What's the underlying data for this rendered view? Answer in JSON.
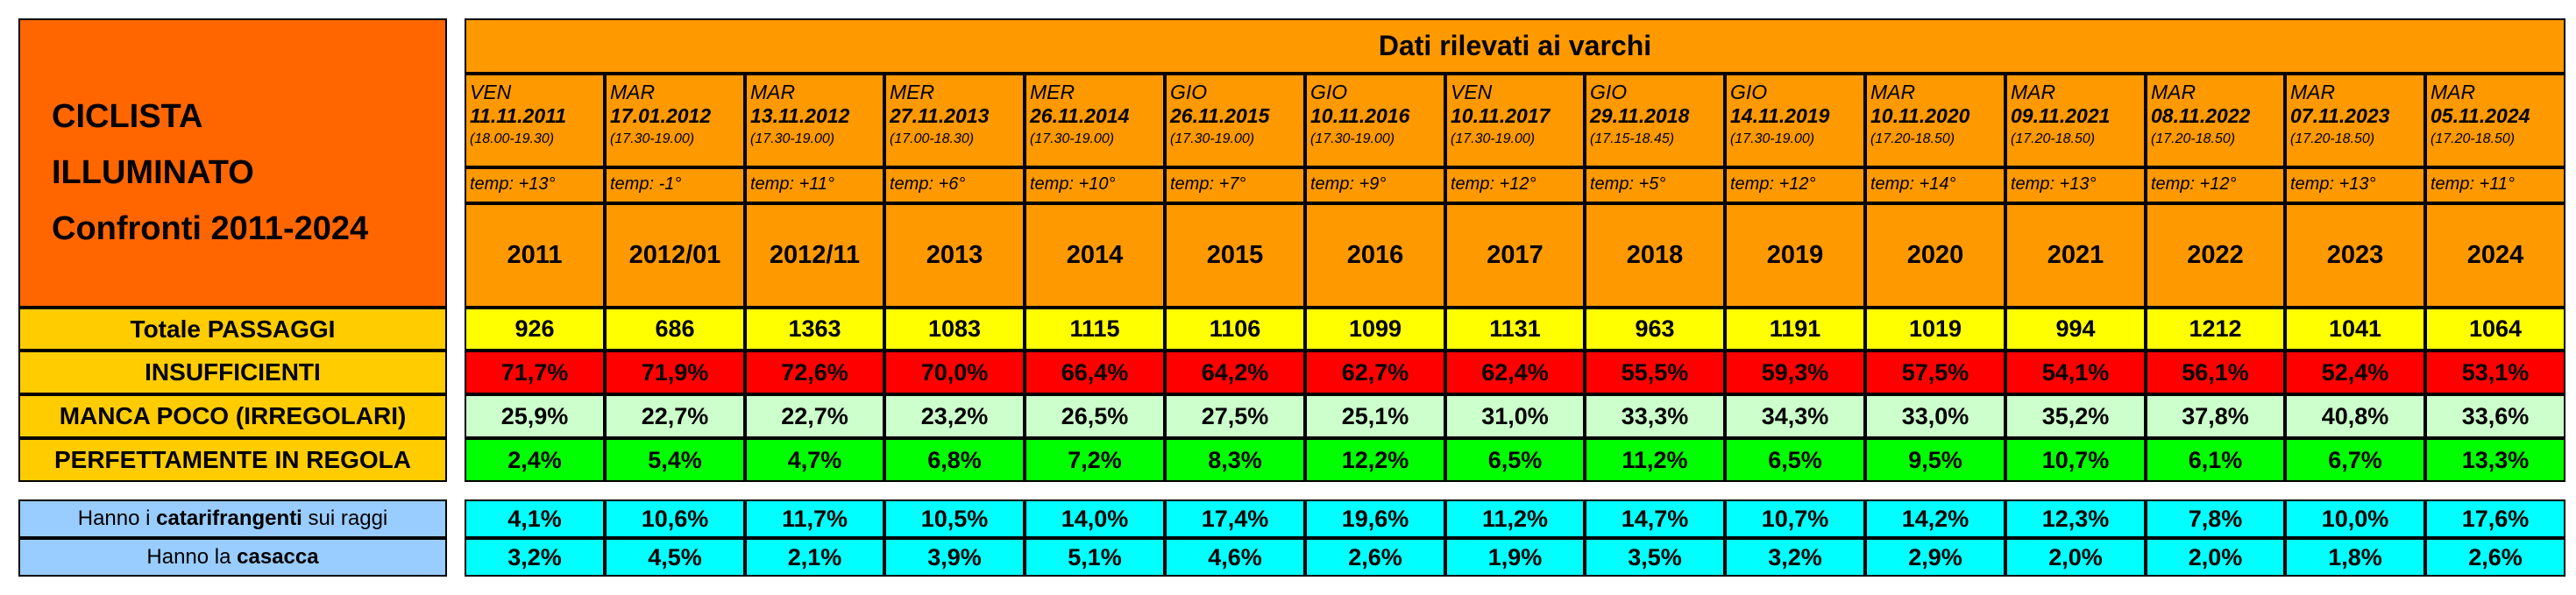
{
  "title": {
    "line1": "CICLISTA",
    "line2": "ILLUMINATO",
    "line3": "Confronti 2011-2024"
  },
  "header": {
    "banner": "Dati rilevati ai varchi"
  },
  "row_labels": {
    "totale": "Totale PASSAGGI",
    "insufficienti": "INSUFFICIENTI",
    "manca_poco": "MANCA POCO (IRREGOLARI)",
    "regola": "PERFETTAMENTE IN REGOLA",
    "cat_pre": "Hanno i ",
    "cat_bold": "catarifrangenti",
    "cat_post": " sui raggi",
    "cas_pre": "Hanno la ",
    "cas_bold": "casacca"
  },
  "colors": {
    "orange_title": "#ff6600",
    "orange_header": "#ff9900",
    "label_gold": "#ffcc00",
    "yellow": "#ffff00",
    "red": "#ff0000",
    "light_green": "#ccffcc",
    "green": "#00ff00",
    "light_blue": "#99ccff",
    "cyan": "#00ffff"
  },
  "columns": [
    {
      "dow": "VEN",
      "date": "11.11.2011",
      "time": "(18.00-19.30)",
      "temp": "temp: +13°",
      "year": "2011",
      "totale": "926",
      "insufficienti": "71,7%",
      "manca_poco": "25,9%",
      "regola": "2,4%",
      "catarifrangenti": "4,1%",
      "casacca": "3,2%"
    },
    {
      "dow": "MAR",
      "date": "17.01.2012",
      "time": "(17.30-19.00)",
      "temp": "temp: -1°",
      "year": "2012/01",
      "totale": "686",
      "insufficienti": "71,9%",
      "manca_poco": "22,7%",
      "regola": "5,4%",
      "catarifrangenti": "10,6%",
      "casacca": "4,5%"
    },
    {
      "dow": "MAR",
      "date": "13.11.2012",
      "time": "(17.30-19.00)",
      "temp": "temp: +11°",
      "year": "2012/11",
      "totale": "1363",
      "insufficienti": "72,6%",
      "manca_poco": "22,7%",
      "regola": "4,7%",
      "catarifrangenti": "11,7%",
      "casacca": "2,1%"
    },
    {
      "dow": "MER",
      "date": "27.11.2013",
      "time": "(17.00-18.30)",
      "temp": "temp: +6°",
      "year": "2013",
      "totale": "1083",
      "insufficienti": "70,0%",
      "manca_poco": "23,2%",
      "regola": "6,8%",
      "catarifrangenti": "10,5%",
      "casacca": "3,9%"
    },
    {
      "dow": "MER",
      "date": "26.11.2014",
      "time": "(17.30-19.00)",
      "temp": "temp: +10°",
      "year": "2014",
      "totale": "1115",
      "insufficienti": "66,4%",
      "manca_poco": "26,5%",
      "regola": "7,2%",
      "catarifrangenti": "14,0%",
      "casacca": "5,1%"
    },
    {
      "dow": "GIO",
      "date": "26.11.2015",
      "time": "(17.30-19.00)",
      "temp": "temp: +7°",
      "year": "2015",
      "totale": "1106",
      "insufficienti": "64,2%",
      "manca_poco": "27,5%",
      "regola": "8,3%",
      "catarifrangenti": "17,4%",
      "casacca": "4,6%"
    },
    {
      "dow": "GIO",
      "date": "10.11.2016",
      "time": "(17.30-19.00)",
      "temp": "temp: +9°",
      "year": "2016",
      "totale": "1099",
      "insufficienti": "62,7%",
      "manca_poco": "25,1%",
      "regola": "12,2%",
      "catarifrangenti": "19,6%",
      "casacca": "2,6%"
    },
    {
      "dow": "VEN",
      "date": "10.11.2017",
      "time": "(17.30-19.00)",
      "temp": "temp: +12°",
      "year": "2017",
      "totale": "1131",
      "insufficienti": "62,4%",
      "manca_poco": "31,0%",
      "regola": "6,5%",
      "catarifrangenti": "11,2%",
      "casacca": "1,9%"
    },
    {
      "dow": "GIO",
      "date": "29.11.2018",
      "time": "(17.15-18.45)",
      "temp": "temp: +5°",
      "year": "2018",
      "totale": "963",
      "insufficienti": "55,5%",
      "manca_poco": "33,3%",
      "regola": "11,2%",
      "catarifrangenti": "14,7%",
      "casacca": "3,5%"
    },
    {
      "dow": "GIO",
      "date": "14.11.2019",
      "time": "(17.30-19.00)",
      "temp": "temp: +12°",
      "year": "2019",
      "totale": "1191",
      "insufficienti": "59,3%",
      "manca_poco": "34,3%",
      "regola": "6,5%",
      "catarifrangenti": "10,7%",
      "casacca": "3,2%"
    },
    {
      "dow": "MAR",
      "date": "10.11.2020",
      "time": "(17.20-18.50)",
      "temp": "temp: +14°",
      "year": "2020",
      "totale": "1019",
      "insufficienti": "57,5%",
      "manca_poco": "33,0%",
      "regola": "9,5%",
      "catarifrangenti": "14,2%",
      "casacca": "2,9%"
    },
    {
      "dow": "MAR",
      "date": "09.11.2021",
      "time": "(17.20-18.50)",
      "temp": "temp: +13°",
      "year": "2021",
      "totale": "994",
      "insufficienti": "54,1%",
      "manca_poco": "35,2%",
      "regola": "10,7%",
      "catarifrangenti": "12,3%",
      "casacca": "2,0%"
    },
    {
      "dow": "MAR",
      "date": "08.11.2022",
      "time": "(17.20-18.50)",
      "temp": "temp: +12°",
      "year": "2022",
      "totale": "1212",
      "insufficienti": "56,1%",
      "manca_poco": "37,8%",
      "regola": "6,1%",
      "catarifrangenti": "7,8%",
      "casacca": "2,0%"
    },
    {
      "dow": "MAR",
      "date": "07.11.2023",
      "time": "(17.20-18.50)",
      "temp": "temp: +13°",
      "year": "2023",
      "totale": "1041",
      "insufficienti": "52,4%",
      "manca_poco": "40,8%",
      "regola": "6,7%",
      "catarifrangenti": "10,0%",
      "casacca": "1,8%"
    },
    {
      "dow": "MAR",
      "date": "05.11.2024",
      "time": "(17.20-18.50)",
      "temp": "temp: +11°",
      "year": "2024",
      "totale": "1064",
      "insufficienti": "53,1%",
      "manca_poco": "33,6%",
      "regola": "13,3%",
      "catarifrangenti": "17,6%",
      "casacca": "2,6%"
    }
  ]
}
